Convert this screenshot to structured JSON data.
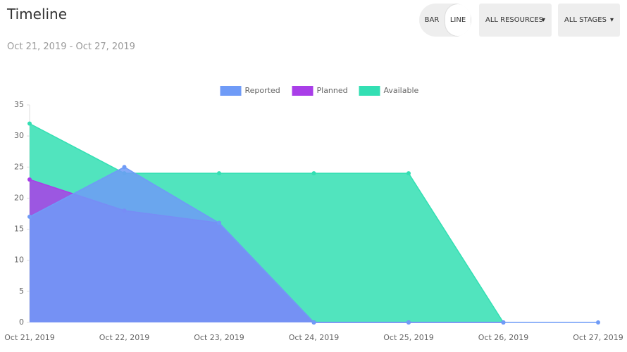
{
  "header": {
    "title": "Timeline",
    "subtitle": "Oct 21, 2019 - Oct 27, 2019"
  },
  "controls": {
    "toggle": [
      "BAR",
      "LINE"
    ],
    "dropdowns": [
      "ALL RESOURCES",
      "ALL STAGES"
    ]
  },
  "chart_data": {
    "type": "area",
    "categories": [
      "Oct 21, 2019",
      "Oct 22, 2019",
      "Oct 23, 2019",
      "Oct 24, 2019",
      "Oct 25, 2019",
      "Oct 26, 2019",
      "Oct 27, 2019"
    ],
    "series": [
      {
        "name": "Reported",
        "color": "#6f9bf7",
        "values": [
          17,
          25,
          16,
          0,
          0,
          0,
          0
        ]
      },
      {
        "name": "Planned",
        "color": "#a93ee8",
        "values": [
          23,
          18,
          16,
          0,
          0,
          0,
          null
        ]
      },
      {
        "name": "Available",
        "color": "#33dfb3",
        "values": [
          32,
          24,
          24,
          24,
          24,
          0,
          null
        ]
      }
    ],
    "ylim": [
      0,
      35
    ],
    "yticks": [
      0,
      5,
      10,
      15,
      20,
      25,
      30,
      35
    ],
    "grid": false,
    "legend": "top"
  }
}
